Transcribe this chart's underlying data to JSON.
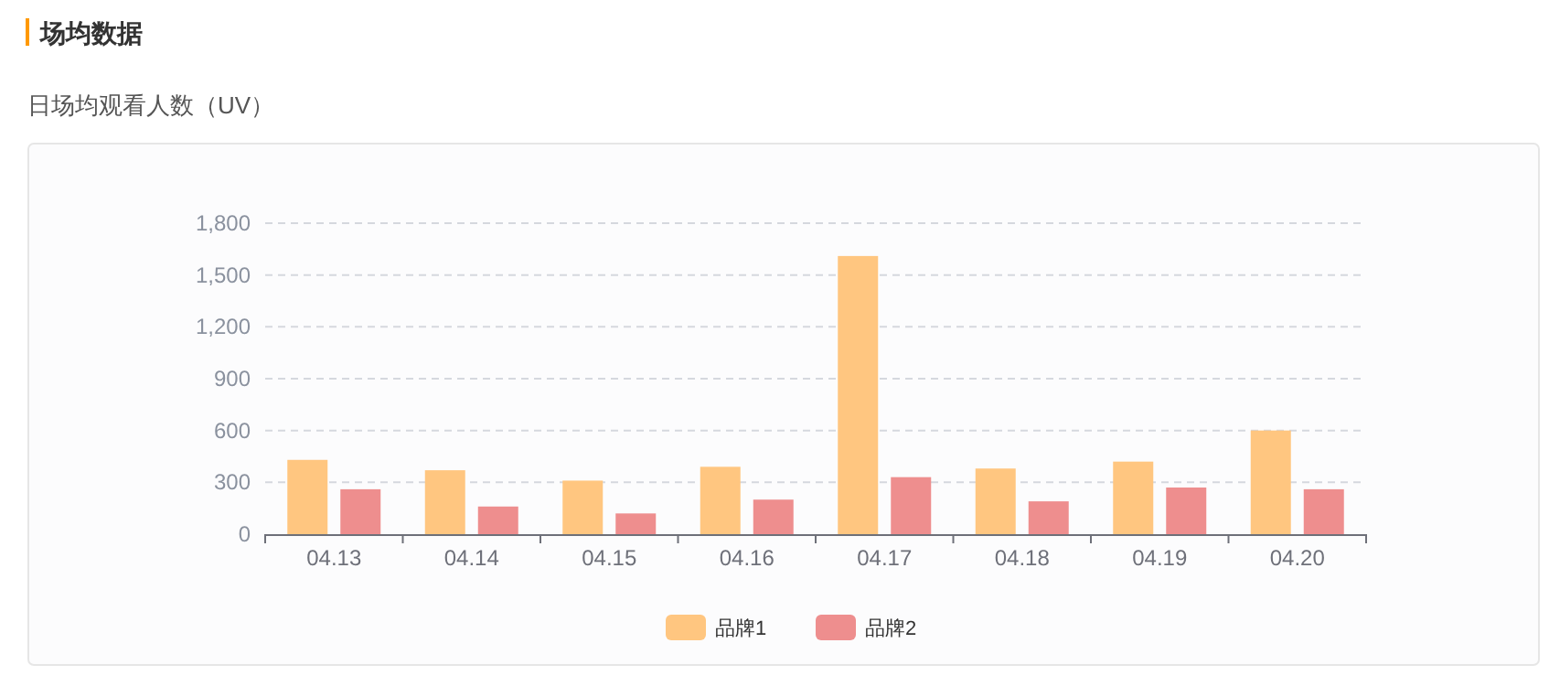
{
  "chart_data": {
    "type": "bar",
    "title": "场均数据",
    "subtitle": "日场均观看人数（UV）",
    "categories": [
      "04.13",
      "04.14",
      "04.15",
      "04.16",
      "04.17",
      "04.18",
      "04.19",
      "04.20"
    ],
    "series": [
      {
        "name": "品牌1",
        "color": "#ffc680",
        "values": [
          430,
          370,
          310,
          390,
          1610,
          380,
          420,
          600
        ]
      },
      {
        "name": "品牌2",
        "color": "#ee8e8e",
        "values": [
          260,
          160,
          120,
          200,
          330,
          190,
          270,
          260
        ]
      }
    ],
    "ylim": [
      0,
      1800
    ],
    "yticks": [
      0,
      300,
      600,
      900,
      {
        "value": 1200,
        "label": "1,200"
      },
      {
        "value": 1500,
        "label": "1,500"
      },
      {
        "value": 1800,
        "label": "1,800"
      }
    ],
    "grid": "y",
    "legend": "bottom"
  }
}
